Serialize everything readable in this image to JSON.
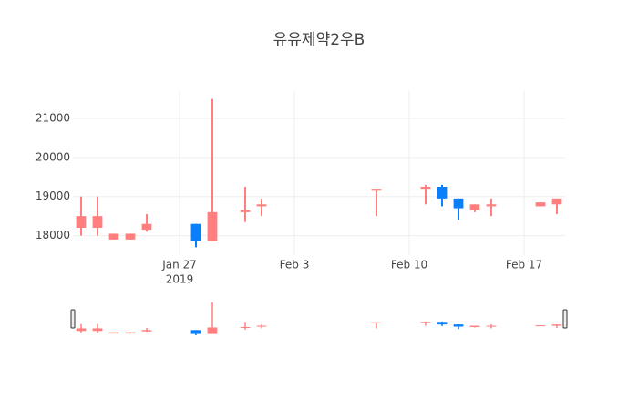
{
  "chart_data": {
    "type": "candlestick",
    "title": "유유제약2우B",
    "x": [
      "2019-01-21",
      "2019-01-22",
      "2019-01-23",
      "2019-01-24",
      "2019-01-25",
      "2019-01-28",
      "2019-01-29",
      "2019-01-31",
      "2019-02-01",
      "2019-02-08",
      "2019-02-11",
      "2019-02-12",
      "2019-02-13",
      "2019-02-14",
      "2019-02-15",
      "2019-02-18",
      "2019-02-19"
    ],
    "open": [
      18200,
      18200,
      17900,
      17900,
      18150,
      18300,
      17850,
      18600,
      18750,
      19150,
      19200,
      19250,
      18950,
      18650,
      18750,
      18750,
      18800
    ],
    "high": [
      19000,
      19000,
      18050,
      18050,
      18550,
      18300,
      21500,
      19250,
      18950,
      19200,
      19300,
      19300,
      18950,
      18800,
      18950,
      18850,
      18950
    ],
    "low": [
      18000,
      18000,
      17900,
      17900,
      18100,
      17700,
      17850,
      18350,
      18500,
      18500,
      18800,
      18750,
      18400,
      18600,
      18500,
      18750,
      18550
    ],
    "close": [
      18500,
      18500,
      18050,
      18050,
      18300,
      17850,
      18600,
      18650,
      18800,
      19200,
      19250,
      18950,
      18700,
      18800,
      18800,
      18850,
      18950
    ],
    "increasing_color": "#ff7f7f",
    "decreasing_color": "#0a7ffa",
    "xlim": [
      "2019-01-20T12:00",
      "2019-02-19T12:00"
    ],
    "xticks": [
      {
        "value": "2019-01-27",
        "label": "Jan 27"
      },
      {
        "value": "2019-02-03",
        "label": "Feb 3"
      },
      {
        "value": "2019-02-10",
        "label": "Feb 10"
      },
      {
        "value": "2019-02-17",
        "label": "Feb 17"
      }
    ],
    "xtick_year": "2019",
    "ylim": [
      17500,
      21700
    ],
    "yticks": [
      18000,
      19000,
      20000,
      21000
    ],
    "grid": true,
    "rangeslider": true
  }
}
